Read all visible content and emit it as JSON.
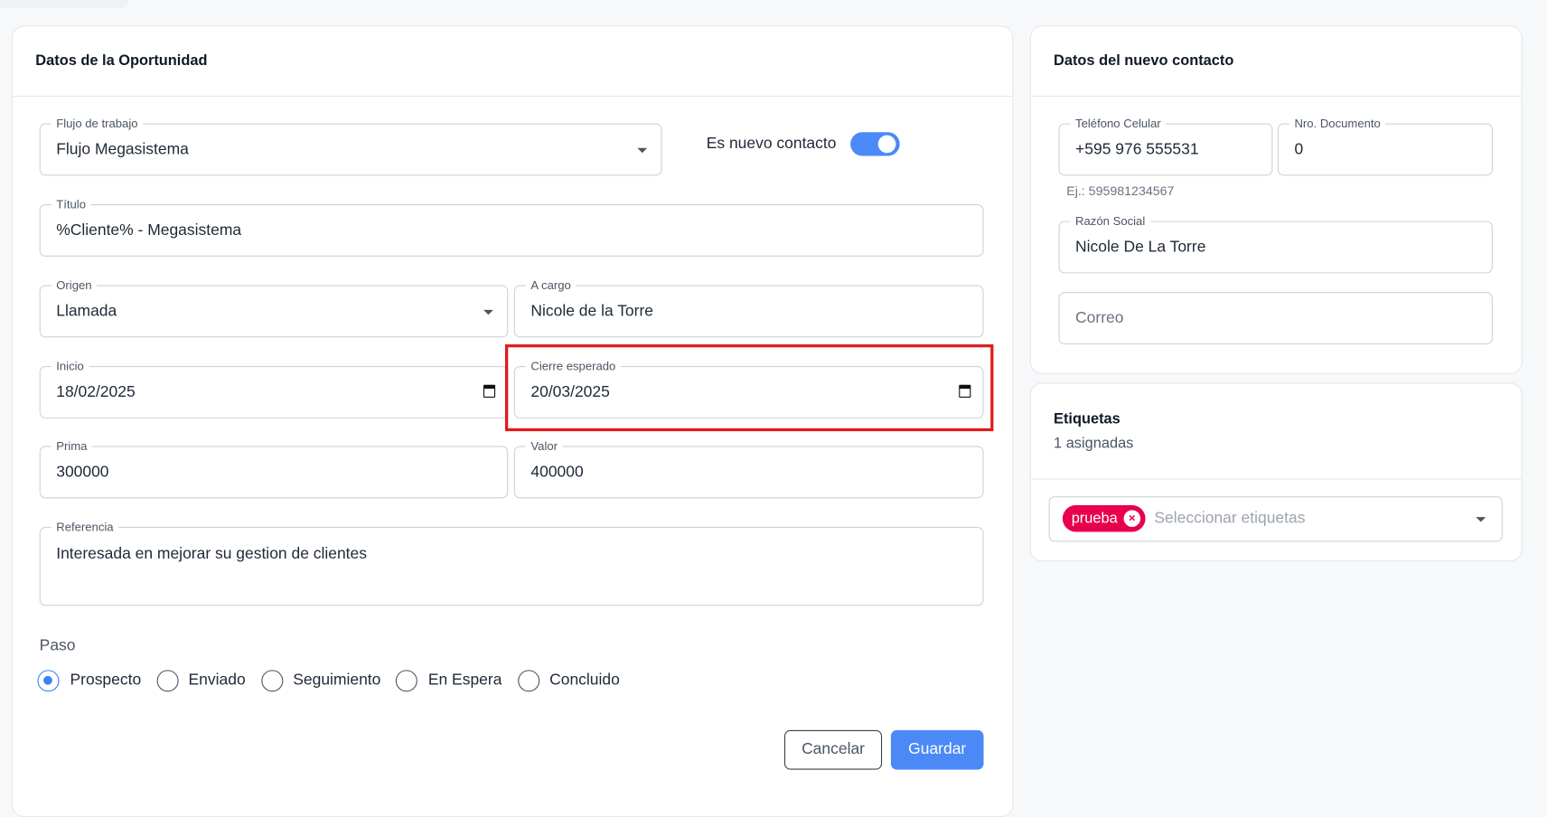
{
  "opportunity": {
    "title": "Datos de la Oportunidad",
    "workflow": {
      "label": "Flujo de trabajo",
      "value": "Flujo Megasistema"
    },
    "new_contact_toggle": {
      "label": "Es nuevo contacto",
      "checked": true
    },
    "title_field": {
      "label": "Título",
      "value": "%Cliente% - Megasistema"
    },
    "origin": {
      "label": "Origen",
      "value": "Llamada"
    },
    "assignee": {
      "label": "A cargo",
      "value": "Nicole de la Torre"
    },
    "start": {
      "label": "Inicio",
      "value": "18/02/2025"
    },
    "expected_close": {
      "label": "Cierre esperado",
      "value": "20/03/2025"
    },
    "premium": {
      "label": "Prima",
      "value": "300000"
    },
    "amount": {
      "label": "Valor",
      "value": "400000"
    },
    "reference": {
      "label": "Referencia",
      "value": "Interesada en mejorar su gestion de clientes"
    },
    "step": {
      "label": "Paso",
      "options": [
        "Prospecto",
        "Enviado",
        "Seguimiento",
        "En Espera",
        "Concluido"
      ],
      "selected": "Prospecto"
    },
    "cancel_label": "Cancelar",
    "save_label": "Guardar"
  },
  "contact": {
    "title": "Datos del nuevo contacto",
    "phone": {
      "label": "Teléfono Celular",
      "value": "+595 976 555531",
      "hint": "Ej.: 595981234567"
    },
    "document": {
      "label": "Nro. Documento",
      "value": "0"
    },
    "business_name": {
      "label": "Razón Social",
      "value": "Nicole De La Torre"
    },
    "email": {
      "placeholder": "Correo",
      "value": ""
    }
  },
  "tags": {
    "title": "Etiquetas",
    "count_text": "1 asignadas",
    "chips": [
      "prueba"
    ],
    "placeholder": "Seleccionar etiquetas"
  },
  "colors": {
    "accent": "#4b8af6",
    "highlight": "#e01b1b",
    "chip": "#e8004d"
  }
}
